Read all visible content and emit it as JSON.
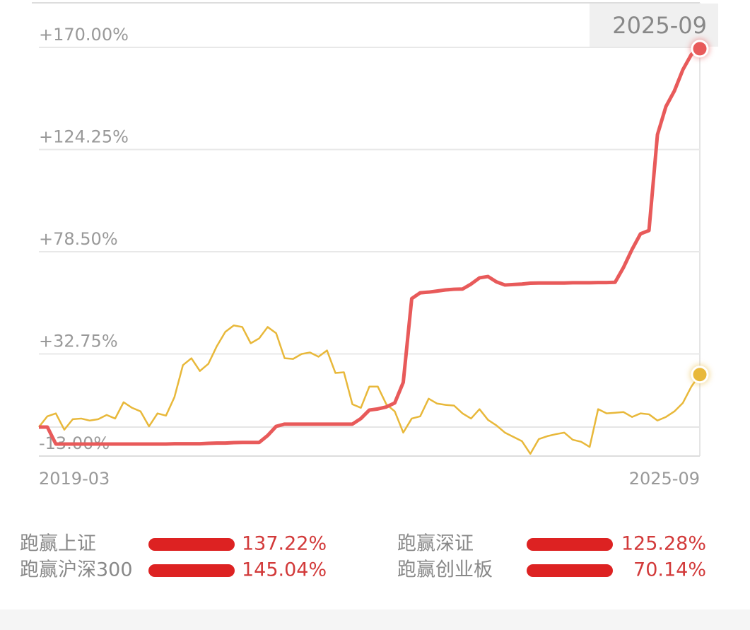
{
  "chart_data": {
    "type": "line",
    "categories": [
      "2019-03",
      null,
      null,
      null,
      null,
      null,
      null,
      null,
      null,
      null,
      null,
      null,
      null,
      null,
      null,
      null,
      null,
      null,
      null,
      null,
      null,
      null,
      null,
      null,
      null,
      null,
      null,
      null,
      null,
      null,
      null,
      null,
      null,
      null,
      null,
      null,
      null,
      null,
      null,
      null,
      null,
      null,
      null,
      null,
      null,
      null,
      null,
      null,
      null,
      null,
      null,
      null,
      null,
      null,
      null,
      null,
      null,
      null,
      null,
      null,
      null,
      null,
      null,
      null,
      null,
      null,
      null,
      null,
      null,
      null,
      null,
      null,
      null,
      null,
      null,
      null,
      null,
      null,
      "2025-09"
    ],
    "series": [
      {
        "color": "#e85a5a",
        "values": [
          0,
          0,
          -7.6,
          -7.6,
          -7.6,
          -7.6,
          -7.6,
          -7.6,
          -7.6,
          -7.6,
          -7.6,
          -7.6,
          -7.6,
          -7.6,
          -7.6,
          -7.6,
          -7.5,
          -7.5,
          -7.5,
          -7.5,
          -7.3,
          -7.2,
          -7.2,
          -7.0,
          -6.9,
          -6.9,
          -6.9,
          -3.8,
          0.3,
          1.3,
          1.3,
          1.3,
          1.3,
          1.3,
          1.3,
          1.3,
          1.3,
          1.3,
          3.8,
          7.6,
          8.1,
          9.0,
          10.8,
          20,
          57.5,
          60.1,
          60.4,
          60.9,
          61.4,
          61.7,
          61.8,
          64.0,
          66.8,
          67.4,
          65.0,
          63.6,
          63.8,
          64.0,
          64.4,
          64.5,
          64.5,
          64.5,
          64.5,
          64.6,
          64.6,
          64.6,
          64.7,
          64.7,
          64.8,
          71.5,
          79.5,
          86.5,
          88.0,
          130.9,
          143.5,
          150.5,
          160,
          166.8,
          169.4
        ]
      },
      {
        "color": "#e8b83a",
        "values": [
          0,
          4.8,
          6.1,
          -1.2,
          3.5,
          3.8,
          2.9,
          3.5,
          5.4,
          3.8,
          11.1,
          8.6,
          7.0,
          0.3,
          6.1,
          5.1,
          13.4,
          27.7,
          30.8,
          25.1,
          28.3,
          36.2,
          42.6,
          45.5,
          44.8,
          37.5,
          39.7,
          44.8,
          42.0,
          30.8,
          30.5,
          32.7,
          33.4,
          31.5,
          34.3,
          24.2,
          24.5,
          10.2,
          8.6,
          18.1,
          18.1,
          10.2,
          7.0,
          -2.5,
          3.8,
          4.8,
          12.7,
          10.5,
          9.9,
          9.6,
          6.1,
          3.8,
          8.0,
          3.2,
          0.7,
          -2.5,
          -4.4,
          -6.3,
          -12.0,
          -5.4,
          -4.1,
          -3.2,
          -2.5,
          -5.7,
          -6.6,
          -8.9,
          8.0,
          6.1,
          6.4,
          6.7,
          4.5,
          6.1,
          5.7,
          2.9,
          4.5,
          7.0,
          10.8,
          18.1,
          23.5
        ]
      }
    ],
    "ylim": [
      -13,
      170
    ],
    "yticks": [
      {
        "value": -13,
        "label": "-13.00%"
      },
      {
        "value": 32.75,
        "label": "+32.75%"
      },
      {
        "value": 78.5,
        "label": "+78.50%"
      },
      {
        "value": 124.25,
        "label": "+124.25%"
      },
      {
        "value": 170,
        "label": "+170.00%"
      }
    ],
    "grid": true
  },
  "stats": [
    {
      "name": "跑赢上证",
      "value": "137.22%"
    },
    {
      "name": "跑赢深证",
      "value": "125.28%"
    },
    {
      "name": "跑赢沪深300",
      "value": "145.04%"
    },
    {
      "name": "跑赢创业板",
      "value": "70.14%"
    }
  ]
}
